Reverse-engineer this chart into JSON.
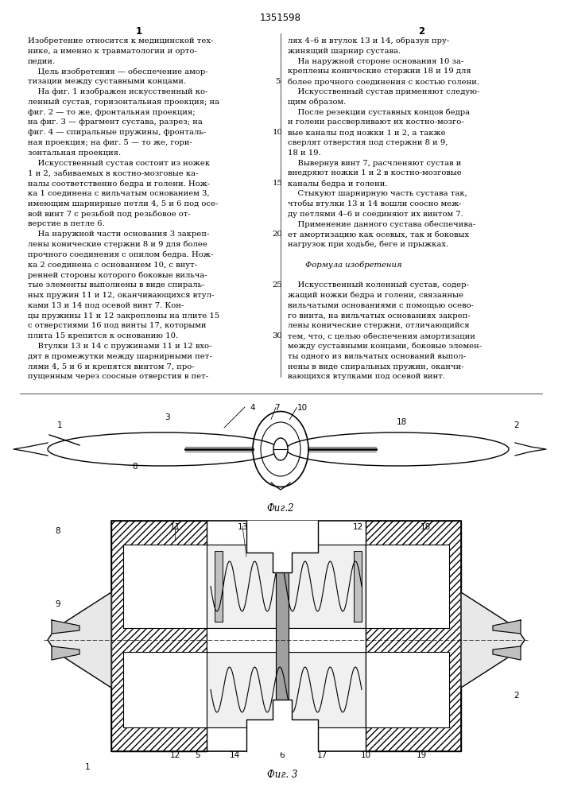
{
  "patent_number": "1351598",
  "col1_number": "1",
  "col2_number": "2",
  "background_color": "#ffffff",
  "fig2_label": "Фиг.2",
  "fig3_label": "Фиг. 3"
}
